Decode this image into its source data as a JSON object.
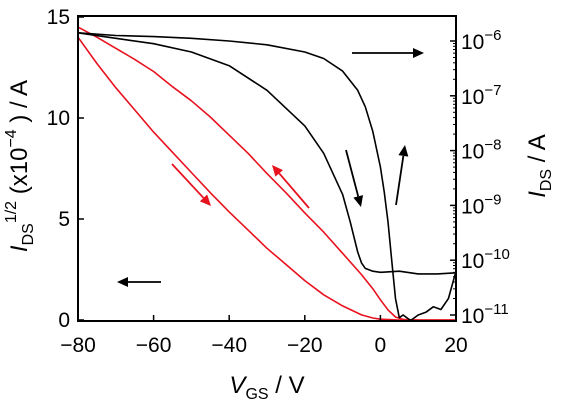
{
  "chart_data": {
    "type": "line",
    "title": "",
    "xlabel": {
      "main": "V",
      "sub": "GS",
      "unit": " / V"
    },
    "ylabel_left": {
      "main": "I",
      "sub": "DS",
      "sup": "1/2",
      "scale": " (x10",
      "scale_exp": "−4",
      "scale_close": " ) / A"
    },
    "ylabel_right": {
      "main": "I",
      "sub": "DS",
      "unit": " / A"
    },
    "xlim": [
      -80,
      20
    ],
    "ylim_left": [
      0,
      15
    ],
    "ylim_right_log10": [
      -11.1,
      -5.6
    ],
    "x_ticks": [
      -80,
      -60,
      -40,
      -20,
      0,
      20
    ],
    "x_tick_labels": [
      "−80",
      "−60",
      "−40",
      "−20",
      "0",
      "20"
    ],
    "y_left_ticks": [
      0,
      5,
      10,
      15
    ],
    "y_left_tick_labels": [
      "0",
      "5",
      "10",
      "15"
    ],
    "y_right_ticks": [
      -11,
      -10,
      -9,
      -8,
      -7,
      -6
    ],
    "y_right_tick_labels": [
      {
        "base": "10",
        "exp": "−11"
      },
      {
        "base": "10",
        "exp": "−10"
      },
      {
        "base": "10",
        "exp": "−9"
      },
      {
        "base": "10",
        "exp": "−8"
      },
      {
        "base": "10",
        "exp": "−7"
      },
      {
        "base": "10",
        "exp": "−6"
      }
    ],
    "grid": false,
    "series": [
      {
        "axis": "left",
        "color": "#e8121f",
        "sweep": "forward",
        "x": [
          -80,
          -75,
          -70,
          -65,
          -60,
          -55,
          -50,
          -45,
          -40,
          -35,
          -30,
          -25,
          -20,
          -15,
          -10,
          -5,
          -2,
          0,
          2,
          5,
          10,
          15,
          20
        ],
        "y": [
          14.0,
          12.7,
          11.5,
          10.4,
          9.3,
          8.3,
          7.3,
          6.3,
          5.35,
          4.45,
          3.55,
          2.75,
          1.95,
          1.25,
          0.7,
          0.25,
          0.1,
          0.04,
          0.02,
          0.0,
          0.0,
          0.0,
          0.0
        ]
      },
      {
        "axis": "left",
        "color": "#e8121f",
        "sweep": "reverse",
        "x": [
          -80,
          -75,
          -70,
          -65,
          -60,
          -55,
          -50,
          -45,
          -40,
          -35,
          -30,
          -25,
          -20,
          -15,
          -10,
          -5,
          -2,
          0,
          2,
          4,
          6,
          10,
          15,
          20
        ],
        "y": [
          14.5,
          14.0,
          13.45,
          12.9,
          12.3,
          11.55,
          10.85,
          10.05,
          9.15,
          8.25,
          7.25,
          6.3,
          5.3,
          4.35,
          3.3,
          2.25,
          1.55,
          1.0,
          0.5,
          0.15,
          0.03,
          0.0,
          0.0,
          0.0
        ]
      },
      {
        "axis": "right",
        "color": "#000000",
        "sweep": "forward",
        "x": [
          -80,
          -70,
          -60,
          -50,
          -40,
          -30,
          -20,
          -15,
          -10,
          -8,
          -6,
          -5,
          -4,
          -2,
          0,
          5,
          10,
          15,
          20
        ],
        "y": [
          -5.85,
          -5.95,
          -6.05,
          -6.2,
          -6.45,
          -6.9,
          -7.55,
          -8.05,
          -8.8,
          -9.3,
          -9.85,
          -10.05,
          -10.15,
          -10.2,
          -10.22,
          -10.2,
          -10.25,
          -10.25,
          -10.23
        ]
      },
      {
        "axis": "right",
        "color": "#000000",
        "sweep": "reverse",
        "x": [
          -80,
          -70,
          -60,
          -50,
          -40,
          -30,
          -20,
          -15,
          -10,
          -6,
          -4,
          -2,
          0,
          1,
          2,
          3,
          4,
          5,
          6,
          8,
          10,
          12,
          14,
          16,
          18,
          20
        ],
        "y": [
          -5.85,
          -5.9,
          -5.92,
          -5.95,
          -6.0,
          -6.07,
          -6.2,
          -6.32,
          -6.55,
          -6.9,
          -7.2,
          -7.65,
          -8.3,
          -8.75,
          -9.3,
          -10.0,
          -10.7,
          -11.05,
          -11.0,
          -11.1,
          -11.0,
          -10.95,
          -10.85,
          -10.9,
          -10.7,
          -10.2
        ]
      }
    ],
    "arrows": [
      {
        "color": "#000000",
        "dir": "left"
      },
      {
        "color": "#000000",
        "dir": "right"
      },
      {
        "color": "#000000",
        "dir": "down"
      },
      {
        "color": "#000000",
        "dir": "up"
      },
      {
        "color": "#e8121f",
        "dir": "down-right"
      },
      {
        "color": "#e8121f",
        "dir": "up-left"
      }
    ]
  }
}
